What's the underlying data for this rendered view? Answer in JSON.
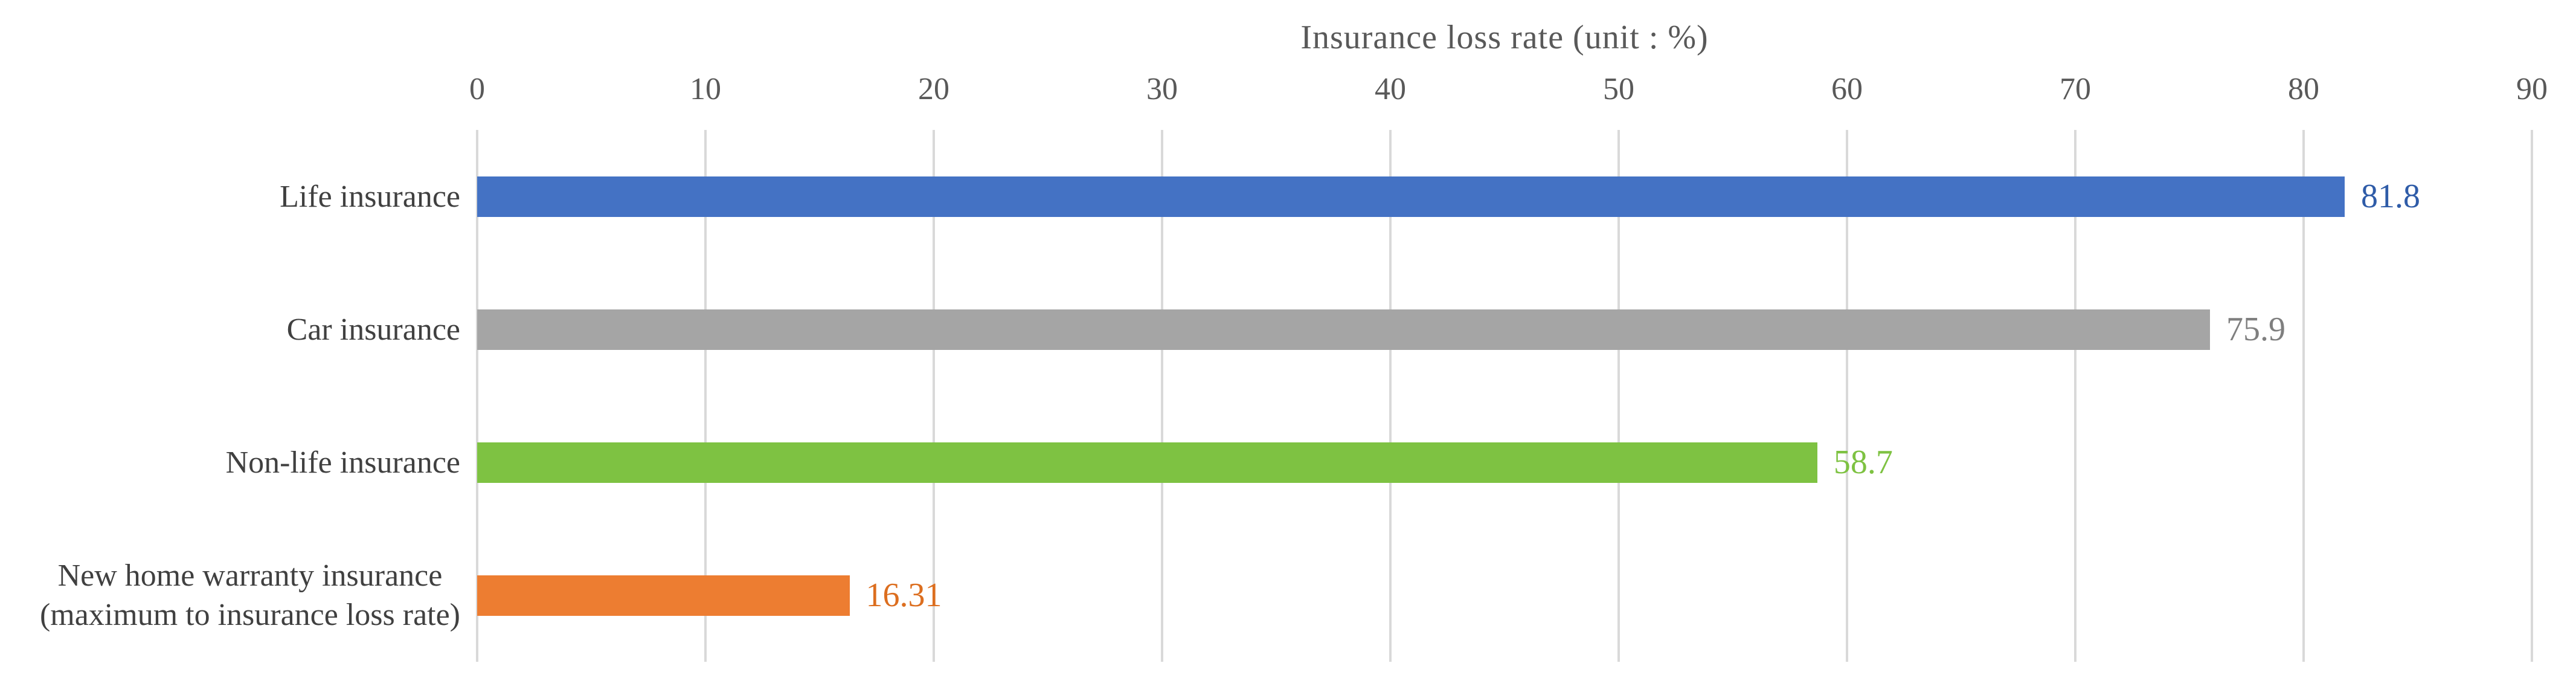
{
  "chart_data": {
    "type": "bar",
    "orientation": "horizontal",
    "title": "Insurance loss rate (unit : %)",
    "categories": [
      "Life insurance",
      "Car insurance",
      "Non-life insurance",
      "New home warranty insurance\n(maximum to insurance loss rate)"
    ],
    "values": [
      81.8,
      75.9,
      58.7,
      16.31
    ],
    "value_labels": [
      "81.8",
      "75.9",
      "58.7",
      "16.31"
    ],
    "colors": [
      "#4472C4",
      "#A5A5A5",
      "#7EC242",
      "#ED7D31"
    ],
    "label_colors": [
      "#2F5CA8",
      "#7F7F7F",
      "#7EC242",
      "#DC6E1F"
    ],
    "xlim": [
      0,
      90
    ],
    "xticks": [
      0,
      10,
      20,
      30,
      40,
      50,
      60,
      70,
      80,
      90
    ],
    "grid": true,
    "legend": "none",
    "gridline_color": "#D9D9D9",
    "axis_text_color": "#595959",
    "category_text_color": "#404040",
    "background_color": "#FFFFFF"
  }
}
